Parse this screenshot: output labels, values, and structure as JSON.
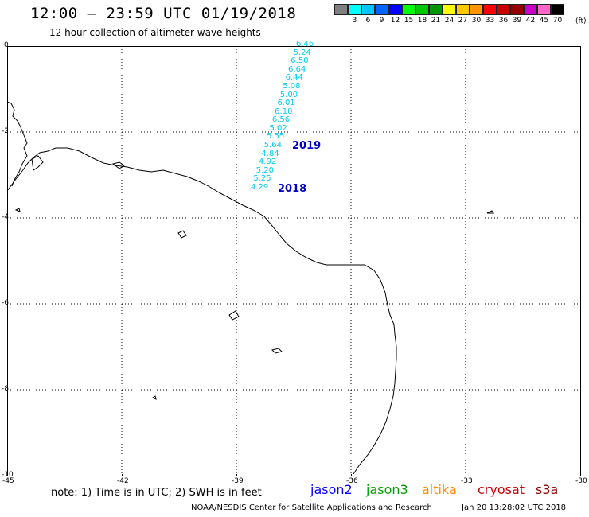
{
  "title": "12:00 – 23:59 UTC 01/19/2018",
  "subtitle": "12 hour collection of altimeter wave heights",
  "legend": {
    "unit": "(ft)",
    "bins": [
      {
        "label": "",
        "color": "#7f7f7f"
      },
      {
        "label": "3",
        "color": "#00ffff"
      },
      {
        "label": "6",
        "color": "#00c8ff"
      },
      {
        "label": "9",
        "color": "#0064ff"
      },
      {
        "label": "12",
        "color": "#0000ff"
      },
      {
        "label": "15",
        "color": "#00ff00"
      },
      {
        "label": "18",
        "color": "#00c800"
      },
      {
        "label": "21",
        "color": "#009600"
      },
      {
        "label": "24",
        "color": "#ffff00"
      },
      {
        "label": "27",
        "color": "#ffc800"
      },
      {
        "label": "30",
        "color": "#ff9600"
      },
      {
        "label": "33",
        "color": "#ff0000"
      },
      {
        "label": "36",
        "color": "#c80000"
      },
      {
        "label": "39",
        "color": "#960000"
      },
      {
        "label": "42",
        "color": "#c800c8"
      },
      {
        "label": "45",
        "color": "#ff64c8"
      },
      {
        "label": "70",
        "color": "#000000"
      }
    ]
  },
  "axes": {
    "lon_labels": [
      "-45",
      "-42",
      "-39",
      "-36",
      "-33",
      "-30"
    ],
    "lat_labels": [
      "0",
      "-2",
      "-4",
      "-6",
      "-8",
      "-10"
    ]
  },
  "track": {
    "color": "#00cdf0",
    "values": [
      "6.46",
      "5.24",
      "6.50",
      "6.64",
      "6.44",
      "5.08",
      "5.00",
      "6.01",
      "6.10",
      "6.56",
      "5.02",
      "5.55",
      "5.64",
      "4.84",
      "4.92",
      "5.20",
      "5.25",
      "4.29"
    ],
    "time_labels": [
      "2019",
      "2018"
    ],
    "time_label_color": "#0000c8"
  },
  "footer": {
    "note": "note: 1) Time is in UTC; 2) SWH is in feet",
    "satellites": [
      {
        "name": "jason2",
        "color": "#0000ff"
      },
      {
        "name": "jason3",
        "color": "#00a000"
      },
      {
        "name": "altika",
        "color": "#ff8c00"
      },
      {
        "name": "cryosat",
        "color": "#c80000"
      },
      {
        "name": "s3a",
        "color": "#8b0000"
      }
    ],
    "credit": "NOAA/NESDIS Center for Satellite Applications and Research",
    "timestamp": "Jan 20 13:28:02 UTC 2018"
  }
}
